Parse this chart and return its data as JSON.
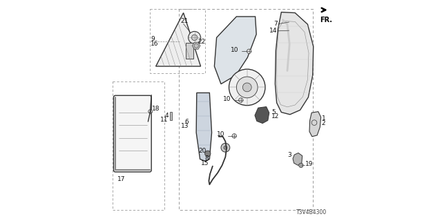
{
  "bg_color": "#ffffff",
  "diagram_id": "T3V4B4300",
  "gray": "#333333",
  "lgray": "#888888",
  "llgray": "#cccccc",
  "fr_text": "FR."
}
